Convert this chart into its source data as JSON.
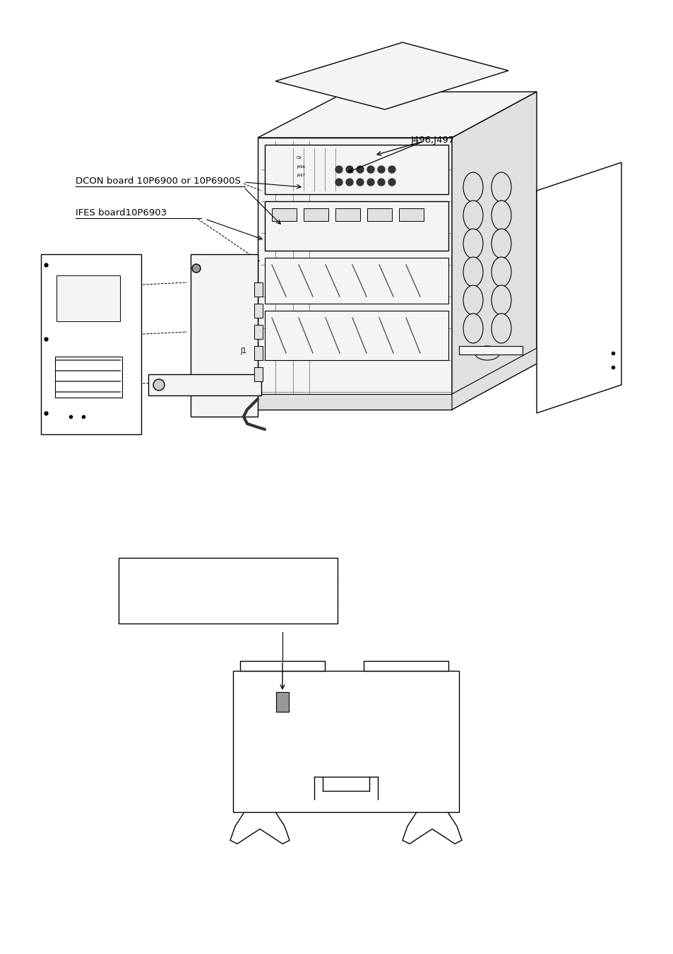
{
  "bg_color": "#ffffff",
  "label_dcon": "DCON board 10P6900 or 10P6900S",
  "label_ifes": "IFES board10P6903",
  "label_j496": "J496,J497",
  "label_j1": "J1",
  "fig_width": 9.54,
  "fig_height": 13.51,
  "dpi": 100,
  "line_color": "#000000",
  "fill_white": "#ffffff",
  "fill_light": "#f4f4f4",
  "fill_mid": "#e0e0e0",
  "fill_dark": "#c0c0c0",
  "fill_gray": "#888888"
}
